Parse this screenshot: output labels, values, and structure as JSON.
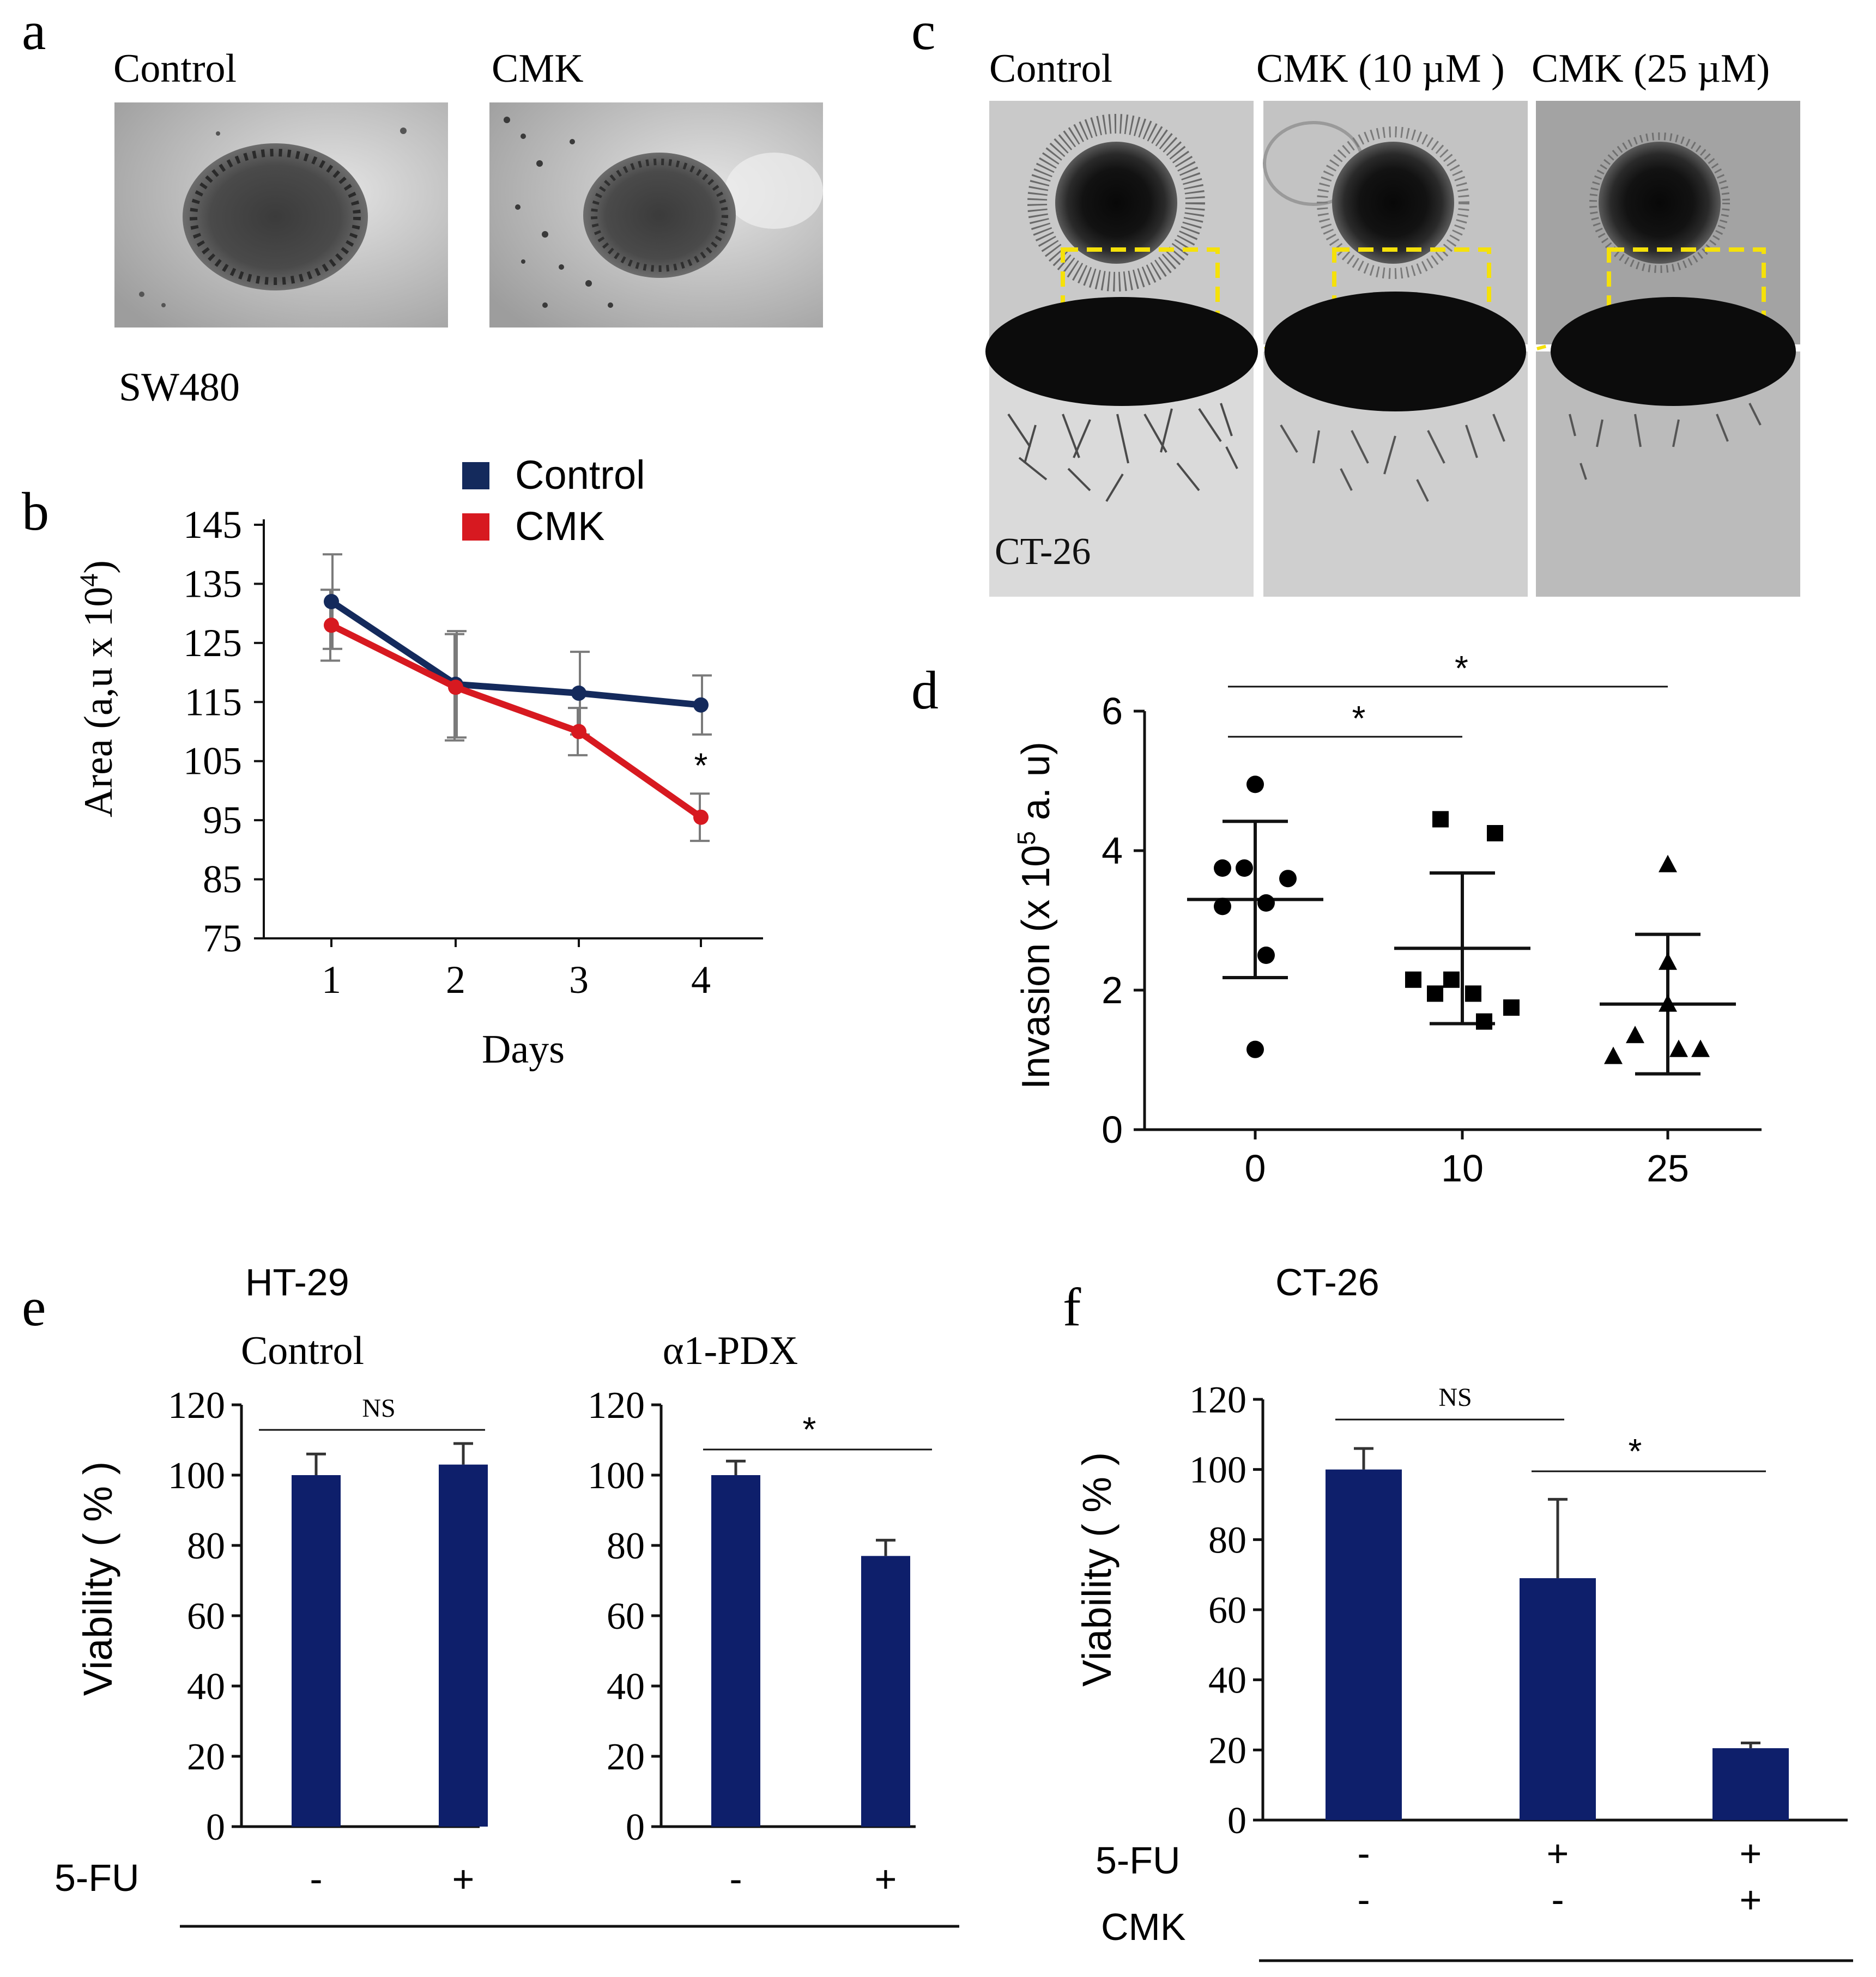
{
  "colors": {
    "control_line": "#142a5c",
    "cmk_line": "#d71920",
    "bar_fill": "#0e1f6b",
    "highlight_box": "#f5e10a",
    "axis": "#111111",
    "error_gray": "#7a7a7a"
  },
  "panel_a": {
    "letter": "a",
    "label_control": "Control",
    "label_cmk": "CMK",
    "cell_line": "SW480"
  },
  "panel_b": {
    "letter": "b"
  },
  "panel_c": {
    "letter": "c",
    "label_control": "Control",
    "label_cmk10": "CMK (10 µM )",
    "label_cmk25": "CMK (25 µM)",
    "cell_line": "CT-26"
  },
  "panel_d": {
    "letter": "d"
  },
  "panel_e": {
    "letter": "e",
    "cell_line": "HT-29",
    "row_label": "5-FU"
  },
  "panel_f": {
    "letter": "f",
    "cell_line": "CT-26",
    "row1_label": "5-FU",
    "row2_label": "CMK"
  },
  "chart_data": [
    {
      "id": "b",
      "type": "line",
      "xlabel": "Days",
      "ylabel": "Area (a,u x 10 4)",
      "ylabel_main": "Area (a,u x 10",
      "ylabel_sup": "4",
      "ylabel_close": ")",
      "x": [
        1,
        2,
        3,
        4
      ],
      "xticks": [
        "1",
        "2",
        "3",
        "4"
      ],
      "yticks": [
        "145",
        "135",
        "125",
        "115",
        "105",
        "95",
        "85",
        "75"
      ],
      "ylim": [
        75,
        145
      ],
      "series": [
        {
          "name": "Control",
          "color": "#142a5c",
          "values": [
            132,
            118,
            116.5,
            114.5
          ],
          "err": [
            8,
            9,
            7,
            5
          ]
        },
        {
          "name": "CMK",
          "color": "#d71920",
          "values": [
            128,
            117.5,
            110,
            95.5
          ],
          "err": [
            6,
            9,
            4,
            4
          ]
        }
      ],
      "legend": [
        "Control",
        "CMK"
      ],
      "annotations": [
        {
          "x": 4,
          "text": "*"
        }
      ]
    },
    {
      "id": "d",
      "type": "scatter",
      "ylabel": "Invasion (x 10 5 a. u)",
      "ylabel_main": "Invasion  (x  10",
      "ylabel_sup": "5",
      "ylabel_close": " a. u)",
      "categories": [
        "0",
        "10",
        "25"
      ],
      "yticks": [
        "0",
        "2",
        "4",
        "6"
      ],
      "ylim": [
        0,
        6
      ],
      "groups": [
        {
          "name": "0",
          "marker": "circle",
          "points": [
            4.95,
            3.75,
            3.75,
            3.6,
            3.2,
            3.25,
            2.5,
            1.15
          ],
          "mean": 3.3,
          "sd": 1.12
        },
        {
          "name": "10",
          "marker": "square",
          "points": [
            4.45,
            4.25,
            2.15,
            2.15,
            1.95,
            1.95,
            1.75,
            1.55
          ],
          "mean": 2.6,
          "sd": 1.08
        },
        {
          "name": "25",
          "marker": "triangle",
          "points": [
            3.8,
            2.4,
            1.8,
            1.35,
            1.15,
            1.15,
            1.05
          ],
          "mean": 1.8,
          "sd": 1.0
        }
      ],
      "significance": [
        {
          "from": "0",
          "to": "10",
          "text": "*"
        },
        {
          "from": "0",
          "to": "25",
          "text": "*"
        }
      ]
    },
    {
      "id": "e1",
      "type": "bar",
      "title": "Control",
      "ylabel": "Viability ( % )",
      "categories": [
        "-",
        "+"
      ],
      "values": [
        100,
        103
      ],
      "err": [
        6,
        6
      ],
      "ylim": [
        0,
        120
      ],
      "yticks": [
        "0",
        "20",
        "40",
        "60",
        "80",
        "100",
        "120"
      ],
      "significance": [
        {
          "from": "-",
          "to": "+",
          "text": "NS"
        }
      ]
    },
    {
      "id": "e2",
      "type": "bar",
      "title": "α1-PDX",
      "categories": [
        "-",
        "+"
      ],
      "values": [
        100,
        77
      ],
      "err": [
        4,
        4.5
      ],
      "ylim": [
        0,
        120
      ],
      "yticks": [
        "0",
        "20",
        "40",
        "60",
        "80",
        "100",
        "120"
      ],
      "significance": [
        {
          "from": "-",
          "to": "+",
          "text": "*"
        }
      ]
    },
    {
      "id": "f",
      "type": "bar",
      "ylabel": "Viability ( % )",
      "categories": [
        "-/-",
        "+/-",
        "+/+"
      ],
      "row1": [
        "-",
        "+",
        "+"
      ],
      "row2": [
        "-",
        "-",
        "+"
      ],
      "values": [
        100,
        69,
        20.5
      ],
      "err": [
        6,
        22.5,
        1.5
      ],
      "ylim": [
        0,
        120
      ],
      "yticks": [
        "0",
        "20",
        "40",
        "60",
        "80",
        "100",
        "120"
      ],
      "significance": [
        {
          "from": 0,
          "to": 1,
          "text": "NS"
        },
        {
          "from": 1,
          "to": 2,
          "text": "*"
        }
      ]
    }
  ]
}
